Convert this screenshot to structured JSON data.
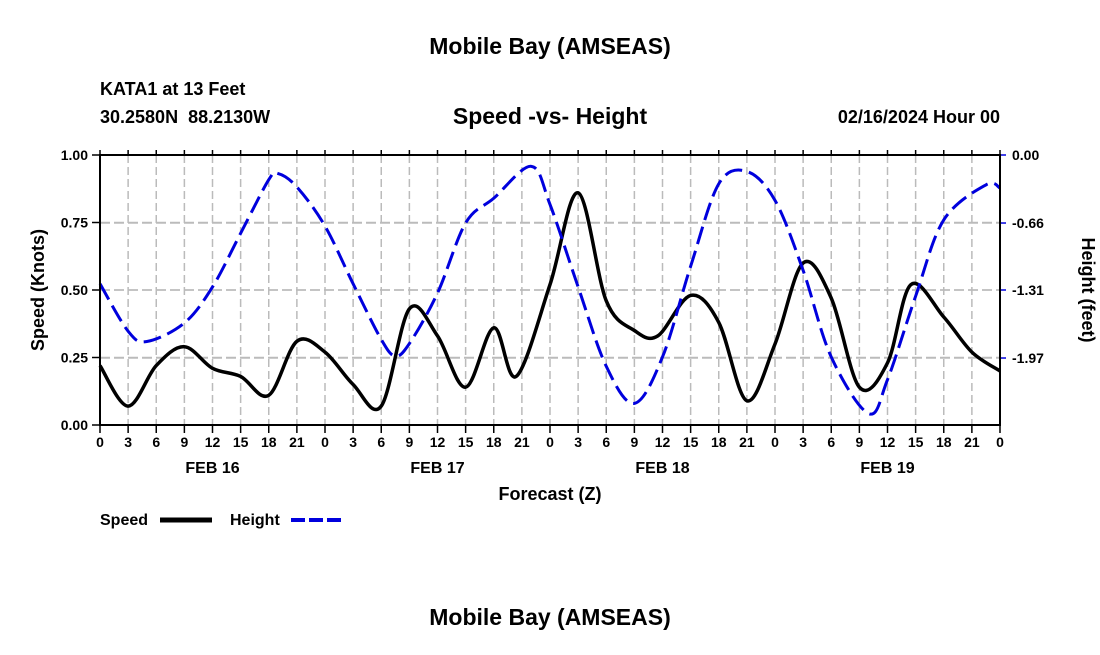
{
  "header": {
    "title": "Mobile Bay (AMSEAS)",
    "station": "KATA1 at 13 Feet",
    "coords": "30.2580N  88.2130W",
    "subtitle": "Speed -vs- Height",
    "date": "02/16/2024 Hour 00"
  },
  "footer": {
    "title": "Mobile Bay (AMSEAS)"
  },
  "chart_data": {
    "type": "line",
    "title": "Speed -vs- Height",
    "xlabel": "Forecast (Z)",
    "ylabel": "Speed (Knots)",
    "y2label": "Height (feet)",
    "xlim": [
      0,
      96
    ],
    "ylim": [
      0,
      1
    ],
    "y2lim": [
      -2.62,
      0
    ],
    "yticks": [
      "0.00",
      "0.25",
      "0.50",
      "0.75",
      "1.00"
    ],
    "y2ticks": [
      "0.00",
      "-0.66",
      "-1.31",
      "-1.97"
    ],
    "y2tick_values": [
      0,
      -0.66,
      -1.31,
      -1.97
    ],
    "xtick_labels": [
      "0",
      "3",
      "6",
      "9",
      "12",
      "15",
      "18",
      "21",
      "0",
      "3",
      "6",
      "9",
      "12",
      "15",
      "18",
      "21",
      "0",
      "3",
      "6",
      "9",
      "12",
      "15",
      "18",
      "21",
      "0",
      "3",
      "6",
      "9",
      "12",
      "15",
      "18",
      "21",
      "0"
    ],
    "day_labels": [
      {
        "label": "FEB 16",
        "hour": 12
      },
      {
        "label": "FEB 17",
        "hour": 36
      },
      {
        "label": "FEB 18",
        "hour": 60
      },
      {
        "label": "FEB 19",
        "hour": 84
      }
    ],
    "grid": true,
    "legend_position": "bottom-left",
    "series": [
      {
        "name": "Speed",
        "color": "#000000",
        "axis": "left",
        "x": [
          0,
          3,
          6,
          9,
          12,
          15,
          18,
          21,
          24,
          27,
          30,
          33,
          36,
          39,
          42,
          44.4,
          48,
          51,
          54,
          57,
          59.5,
          63,
          66,
          69,
          72,
          75,
          78,
          81,
          84,
          86.5,
          90,
          93,
          96
        ],
        "y": [
          0.22,
          0.07,
          0.22,
          0.29,
          0.21,
          0.18,
          0.11,
          0.31,
          0.27,
          0.15,
          0.07,
          0.43,
          0.33,
          0.14,
          0.36,
          0.18,
          0.52,
          0.86,
          0.46,
          0.35,
          0.33,
          0.48,
          0.38,
          0.09,
          0.3,
          0.6,
          0.47,
          0.14,
          0.23,
          0.52,
          0.4,
          0.27,
          0.2
        ]
      },
      {
        "name": "Height",
        "color": "#0000dd",
        "axis": "right",
        "x": [
          0,
          3,
          5,
          9,
          12,
          15,
          18,
          19,
          21,
          24,
          27,
          30,
          31.5,
          33,
          36,
          39,
          42,
          46,
          48,
          51,
          54,
          57,
          60,
          63,
          66,
          69,
          72,
          75,
          78,
          82,
          84,
          87,
          90,
          94.5,
          96
        ],
        "y": [
          -1.25,
          -1.71,
          -1.81,
          -1.63,
          -1.28,
          -0.76,
          -0.24,
          -0.18,
          -0.31,
          -0.69,
          -1.25,
          -1.79,
          -1.95,
          -1.83,
          -1.34,
          -0.66,
          -0.42,
          -0.11,
          -0.48,
          -1.28,
          -2.05,
          -2.41,
          -1.96,
          -1.08,
          -0.28,
          -0.16,
          -0.44,
          -1.12,
          -1.96,
          -2.51,
          -2.18,
          -1.37,
          -0.63,
          -0.29,
          -0.32
        ]
      }
    ]
  }
}
